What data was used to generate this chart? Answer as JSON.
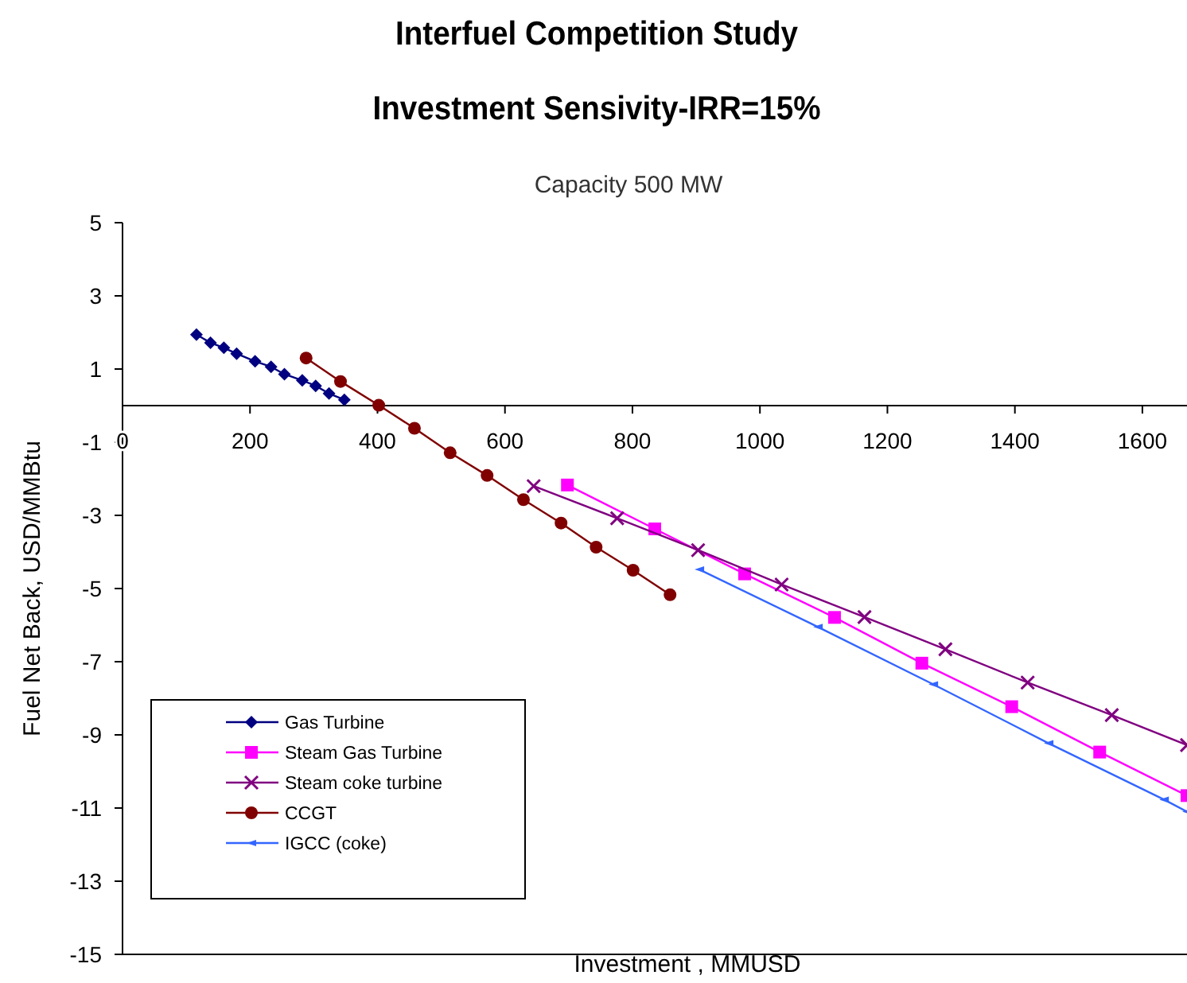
{
  "chart_data": {
    "type": "line",
    "title": "Interfuel Competition Study\nInvestment Sensivity-IRR=15%",
    "subtitle": "Capacity 500 MW",
    "xlabel": "Investment , MMUSD",
    "ylabel": "Fuel Net Back, USD/MMBtu",
    "xlim": [
      0,
      1670
    ],
    "xticks": [
      0,
      200,
      400,
      600,
      800,
      1000,
      1200,
      1400,
      1600
    ],
    "ylim": [
      -15,
      5
    ],
    "yticks": [
      5,
      3,
      1,
      -1,
      -3,
      -5,
      -7,
      -9,
      -11,
      -13,
      -15
    ],
    "grid": false,
    "legend": "bottom left",
    "series": [
      {
        "name": "Gas Turbine",
        "color": "#000080",
        "marker": "diamond",
        "x": [
          116,
          138,
          159,
          179,
          208,
          233,
          254,
          282,
          303,
          324,
          348
        ],
        "values": [
          1.94,
          1.72,
          1.58,
          1.42,
          1.21,
          1.06,
          0.86,
          0.69,
          0.54,
          0.33,
          0.16
        ]
      },
      {
        "name": "Steam Gas Turbine",
        "color": "#ff00ff",
        "marker": "square",
        "x": [
          698,
          835,
          976,
          1117,
          1254,
          1395,
          1533,
          1670
        ],
        "values": [
          -2.17,
          -3.37,
          -4.6,
          -5.79,
          -7.04,
          -8.23,
          -9.47,
          -10.66
        ]
      },
      {
        "name": "Steam coke turbine",
        "color": "#800080",
        "marker": "cross",
        "x": [
          645,
          776,
          903,
          1034,
          1164,
          1291,
          1420,
          1552,
          1670
        ],
        "values": [
          -2.2,
          -3.08,
          -3.95,
          -4.89,
          -5.78,
          -6.66,
          -7.57,
          -8.46,
          -9.28
        ]
      },
      {
        "name": "CCGT",
        "color": "#800000",
        "marker": "circle",
        "x": [
          288,
          342,
          402,
          458,
          514,
          572,
          629,
          688,
          743,
          801,
          859
        ],
        "values": [
          1.3,
          0.66,
          0.01,
          -0.62,
          -1.29,
          -1.91,
          -2.57,
          -3.21,
          -3.87,
          -4.5,
          -5.17
        ]
      },
      {
        "name": "IGCC (coke)",
        "color": "#3366ff",
        "marker": "triangle",
        "x": [
          905,
          1091,
          1272,
          1453,
          1634,
          1670
        ],
        "values": [
          -4.48,
          -6.05,
          -7.62,
          -9.23,
          -10.77,
          -11.1
        ]
      }
    ]
  }
}
